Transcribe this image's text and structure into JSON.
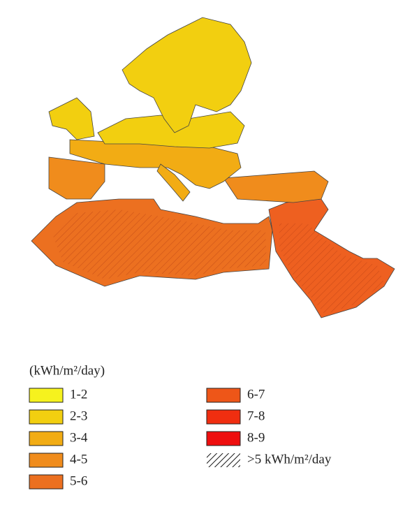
{
  "legend": {
    "unit": "(kWh/m²/day)",
    "items": [
      {
        "label": "1-2",
        "color": "#f6f21e"
      },
      {
        "label": "2-3",
        "color": "#f2cf10"
      },
      {
        "label": "3-4",
        "color": "#f2ac14"
      },
      {
        "label": "4-5",
        "color": "#f08c1c"
      },
      {
        "label": "5-6",
        "color": "#ec7020"
      },
      {
        "label": "6-7",
        "color": "#ee5618"
      },
      {
        "label": "7-8",
        "color": "#f02e10"
      },
      {
        "label": "8-9",
        "color": "#ee0e0e"
      }
    ],
    "hatch": {
      "label": ">5 kWh/m²/day"
    }
  }
}
